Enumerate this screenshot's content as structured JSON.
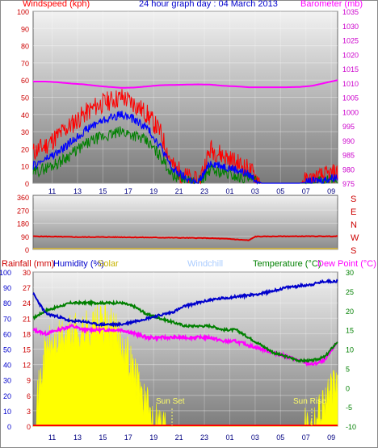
{
  "header": {
    "title": "24 hour graph day : 04 March 2013",
    "left_label": "Windspeed (kph)",
    "right_label": "Barometer (mb)"
  },
  "direction_panel": {
    "compass": [
      "S",
      "E",
      "N",
      "W",
      "S"
    ]
  },
  "bottom_panel": {
    "labels": {
      "rainfall": "Rainfall (mm)",
      "humidity": "Humidity (%)",
      "solar": "Solar",
      "windchill": "Windchill",
      "temperature": "Temperature (°C)",
      "dewpoint": "Dew Point (°C)"
    },
    "annotations": {
      "sunset": "Sun Set",
      "sunrise": "Sun Rise"
    }
  },
  "colors": {
    "wind_gust": "#ff0000",
    "wind_avg": "#0000ff",
    "wind_low": "#008000",
    "barometer": "#ff00ff",
    "direction": "#e00000",
    "humidity": "#0000cc",
    "temperature": "#008000",
    "dewpoint": "#ff00ff",
    "solar": "#ffff00",
    "rain": "#ff0000",
    "windchill": "#aaccff"
  },
  "chart_data": [
    {
      "type": "line",
      "title": "24 hour graph day : 04 March 2013",
      "x_ticks": [
        "11",
        "13",
        "15",
        "17",
        "19",
        "21",
        "23",
        "01",
        "03",
        "05",
        "07",
        "09"
      ],
      "ylabel_left": "Windspeed (kph)",
      "ylim_left": [
        0,
        100
      ],
      "y_ticks_left": [
        0,
        10,
        20,
        30,
        40,
        50,
        60,
        70,
        80,
        90,
        100
      ],
      "ylabel_right": "Barometer (mb)",
      "ylim_right": [
        975,
        1035
      ],
      "y_ticks_right": [
        975,
        980,
        985,
        990,
        995,
        1000,
        1005,
        1010,
        1015,
        1020,
        1025,
        1030,
        1035
      ],
      "x": [
        9.5,
        10.5,
        11.5,
        12.5,
        13.5,
        14.5,
        15.5,
        16.5,
        17.5,
        18.5,
        19.5,
        20.5,
        21.5,
        22.5,
        23.5,
        24.5,
        25.5,
        26.5,
        27.5,
        28.5,
        29.5,
        30.5,
        31.5,
        32.5,
        33.5
      ],
      "series": [
        {
          "name": "Windspeed gust",
          "values": [
            18,
            22,
            28,
            34,
            40,
            45,
            48,
            50,
            46,
            40,
            30,
            10,
            4,
            0,
            20,
            16,
            12,
            8,
            0,
            0,
            0,
            0,
            2,
            4,
            6
          ]
        },
        {
          "name": "Windspeed avg",
          "values": [
            10,
            14,
            18,
            24,
            30,
            35,
            38,
            40,
            37,
            32,
            22,
            8,
            3,
            0,
            12,
            10,
            8,
            5,
            0,
            0,
            0,
            0,
            1,
            2,
            4
          ]
        },
        {
          "name": "Windspeed low",
          "values": [
            6,
            9,
            12,
            17,
            22,
            26,
            28,
            30,
            28,
            24,
            16,
            5,
            2,
            0,
            8,
            6,
            4,
            3,
            0,
            0,
            0,
            0,
            0,
            1,
            2
          ]
        },
        {
          "name": "Barometer",
          "values": [
            1010.5,
            1010.5,
            1010.2,
            1009.8,
            1009.5,
            1009,
            1008.6,
            1008.3,
            1008.4,
            1008.8,
            1009.2,
            1009.3,
            1009.4,
            1009.5,
            1009.4,
            1009,
            1008.8,
            1008.5,
            1008.5,
            1008.5,
            1008.5,
            1008.6,
            1009,
            1010,
            1011
          ]
        }
      ]
    },
    {
      "type": "line",
      "x_ticks": [
        "11",
        "13",
        "15",
        "17",
        "19",
        "21",
        "23",
        "01",
        "03",
        "05",
        "07",
        "09"
      ],
      "y_ticks": [
        0,
        90,
        180,
        270,
        360
      ],
      "ylim": [
        0,
        360
      ],
      "x": [
        9.5,
        11,
        13,
        15,
        17,
        19,
        21,
        23,
        25,
        26.5,
        27,
        29,
        31,
        33.5
      ],
      "series": [
        {
          "name": "Wind direction",
          "values": [
            90,
            88,
            85,
            85,
            84,
            82,
            80,
            78,
            72,
            62,
            88,
            90,
            90,
            90
          ]
        }
      ]
    },
    {
      "type": "line",
      "x_ticks": [
        "11",
        "13",
        "15",
        "17",
        "19",
        "21",
        "23",
        "01",
        "03",
        "05",
        "07",
        "09"
      ],
      "ylabel_left": "Humidity (%)",
      "ylim_left": [
        0,
        100
      ],
      "y_ticks_left": [
        0,
        10,
        20,
        30,
        40,
        50,
        60,
        70,
        80,
        90,
        100
      ],
      "ylabel_rain": "Rainfall (mm)",
      "ylim_rain": [
        0,
        30
      ],
      "y_ticks_rain": [
        0,
        3,
        6,
        9,
        12,
        15,
        18,
        21,
        24,
        27,
        30
      ],
      "ylabel_right": "Temperature (°C)",
      "ylim_right": [
        -10,
        30
      ],
      "y_ticks_right": [
        -10,
        -5,
        0,
        5,
        10,
        15,
        20,
        25,
        30
      ],
      "x": [
        9.5,
        10.5,
        11.5,
        12.5,
        13.5,
        14.5,
        15.5,
        16.5,
        17.5,
        18.5,
        19.5,
        20.5,
        21.5,
        22.5,
        23.5,
        24.5,
        25.5,
        26.5,
        27.5,
        28.5,
        29.5,
        30.5,
        31.5,
        32.5,
        33.5
      ],
      "series": [
        {
          "name": "Humidity",
          "values": [
            86,
            73,
            71,
            68,
            68,
            66,
            66,
            66,
            68,
            70,
            72,
            74,
            78,
            80,
            82,
            83,
            84,
            85,
            86,
            88,
            90,
            91,
            92,
            94,
            94
          ]
        },
        {
          "name": "Temperature",
          "values": [
            18,
            20,
            21,
            22,
            22,
            22,
            22,
            22,
            21,
            19,
            18,
            17,
            16,
            16,
            16,
            15,
            15,
            13,
            11,
            9,
            8,
            7,
            7,
            8,
            12
          ]
        },
        {
          "name": "Dew Point",
          "values": [
            15,
            14,
            15,
            16,
            15,
            15,
            15,
            15,
            14,
            13,
            13,
            13,
            13,
            13,
            13,
            12,
            12,
            11,
            10,
            9,
            8,
            7,
            6,
            7,
            12
          ]
        },
        {
          "name": "Solar",
          "values": [
            0,
            50,
            55,
            60,
            62,
            66,
            65,
            55,
            35,
            12,
            3,
            0,
            0,
            0,
            0,
            0,
            0,
            0,
            0,
            0,
            0,
            0,
            2,
            18,
            26
          ]
        },
        {
          "name": "Rainfall",
          "values": [
            0,
            0,
            0,
            0,
            0,
            0,
            0,
            0,
            0,
            0,
            0,
            0,
            0,
            0,
            0,
            0,
            0,
            0,
            0,
            0,
            0,
            0,
            0,
            0,
            0
          ]
        }
      ]
    }
  ]
}
